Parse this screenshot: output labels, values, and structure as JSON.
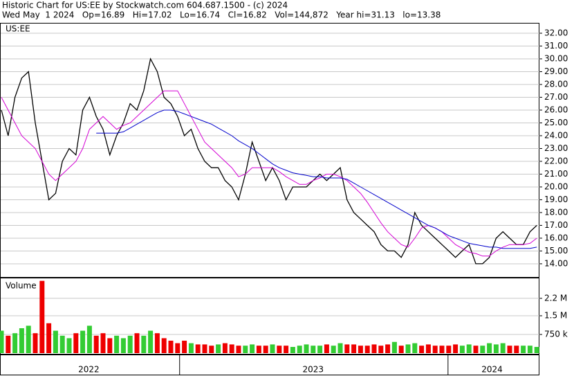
{
  "header": {
    "title": "Historic Chart for US:EE by Stockwatch.com 604.687.1500 - (c) 2024",
    "quote": "Wed May  1 2024   Op=16.89   Hi=17.02   Lo=16.74   Cl=16.82   Vol=144,872   Year hi=31.13   lo=13.38"
  },
  "chart_data": [
    {
      "type": "line",
      "title": "US:EE",
      "categories": [
        null,
        null,
        null,
        null,
        null,
        null,
        null,
        null,
        null,
        null,
        null,
        null,
        null,
        null,
        null,
        null,
        null,
        null,
        null,
        null,
        null,
        null,
        null,
        null,
        null,
        null,
        null,
        null,
        null,
        null,
        null,
        null,
        null,
        null,
        null,
        null,
        null,
        null,
        null,
        null,
        null,
        null,
        null,
        null,
        null,
        null,
        null,
        null,
        null,
        null,
        null,
        null,
        null,
        null,
        null,
        null,
        null,
        null,
        null,
        null,
        null,
        null,
        null,
        null,
        null,
        null,
        null,
        null,
        null,
        null,
        null,
        null,
        null,
        null,
        null,
        null,
        null,
        null,
        null,
        null
      ],
      "xticks": [
        {
          "value": 12.9,
          "label": "2022"
        },
        {
          "value": 46,
          "label": "2023"
        },
        {
          "value": 72.4,
          "label": "2024"
        }
      ],
      "xdividers": [
        26.3,
        65.9
      ],
      "ylim": [
        12.97,
        32.81
      ],
      "yticks": [
        {
          "value": 14,
          "label": "14.00"
        },
        {
          "value": 15,
          "label": "15.00"
        },
        {
          "value": 16,
          "label": "16.00"
        },
        {
          "value": 17,
          "label": "17.00"
        },
        {
          "value": 18,
          "label": "18.00"
        },
        {
          "value": 19,
          "label": "19.00"
        },
        {
          "value": 20,
          "label": "20.00"
        },
        {
          "value": 21,
          "label": "21.00"
        },
        {
          "value": 22,
          "label": "22.00"
        },
        {
          "value": 23,
          "label": "23.00"
        },
        {
          "value": 24,
          "label": "24.00"
        },
        {
          "value": 25,
          "label": "25.00"
        },
        {
          "value": 26,
          "label": "26.00"
        },
        {
          "value": 27,
          "label": "27.00"
        },
        {
          "value": 28,
          "label": "28.00"
        },
        {
          "value": 29,
          "label": "29.00"
        },
        {
          "value": 30,
          "label": "30.00"
        },
        {
          "value": 31,
          "label": "31.00"
        },
        {
          "value": 32,
          "label": "32.00"
        }
      ],
      "grid": true,
      "series": [
        {
          "color": "#000000",
          "values": [
            26,
            24,
            27,
            28.5,
            29,
            25,
            22,
            19,
            19.5,
            22,
            23,
            22.5,
            26,
            27,
            25.5,
            24.5,
            22.5,
            24,
            25,
            26.5,
            26,
            27.5,
            30,
            29,
            27,
            26.5,
            25.5,
            24,
            24.5,
            23,
            22,
            21.5,
            21.5,
            20.5,
            20,
            19,
            21,
            23.5,
            22,
            20.5,
            21.5,
            20.5,
            19,
            20,
            20,
            20,
            20.5,
            21,
            20.5,
            21,
            21.5,
            19,
            18,
            17.5,
            17,
            16.5,
            15.5,
            15,
            15,
            14.5,
            15.5,
            18,
            17,
            16.5,
            16,
            15.5,
            15,
            14.5,
            15,
            15.5,
            14,
            14,
            14.5,
            16,
            16.5,
            16,
            15.5,
            15.5,
            16.5,
            17
          ]
        },
        {
          "color": "#d400d4",
          "values": [
            27,
            26,
            25,
            24,
            23.5,
            23,
            22,
            21,
            20.5,
            21,
            21.5,
            22,
            23,
            24.5,
            25,
            25.5,
            25,
            24.5,
            24.8,
            25,
            25.5,
            26,
            26.5,
            27,
            27.5,
            27.5,
            27.5,
            26.5,
            25.5,
            24.5,
            23.5,
            23,
            22.5,
            22,
            21.5,
            20.8,
            21,
            21.5,
            21.5,
            21.5,
            21.5,
            21.2,
            20.8,
            20.5,
            20.2,
            20.2,
            20.5,
            20.7,
            21,
            21,
            20.8,
            20.5,
            20,
            19.5,
            18.8,
            18,
            17.2,
            16.5,
            16,
            15.5,
            15.3,
            16,
            16.8,
            17,
            16.8,
            16.5,
            16,
            15.5,
            15.2,
            14.9,
            14.8,
            14.6,
            14.6,
            15,
            15.3,
            15.5,
            15.5,
            15.5,
            15.6,
            16
          ]
        },
        {
          "color": "#0000cc",
          "values": [
            null,
            null,
            null,
            null,
            null,
            null,
            null,
            null,
            null,
            null,
            null,
            null,
            null,
            null,
            24.2,
            24.2,
            24.2,
            24.2,
            24.3,
            24.6,
            24.9,
            25.2,
            25.5,
            25.8,
            26,
            26,
            25.9,
            25.7,
            25.5,
            25.3,
            25.1,
            24.9,
            24.6,
            24.3,
            24,
            23.6,
            23.3,
            23,
            22.6,
            22.2,
            21.8,
            21.5,
            21.3,
            21.1,
            21,
            20.9,
            20.8,
            20.8,
            20.7,
            20.7,
            20.7,
            20.6,
            20.3,
            20,
            19.7,
            19.4,
            19.1,
            18.8,
            18.5,
            18.2,
            17.9,
            17.6,
            17.3,
            17,
            16.8,
            16.5,
            16.2,
            16,
            15.8,
            15.6,
            15.5,
            15.4,
            15.3,
            15.3,
            15.2,
            15.2,
            15.2,
            15.2,
            15.2,
            15.3
          ]
        }
      ]
    },
    {
      "type": "bar",
      "title": "Volume",
      "up_color": "#33cc33",
      "down_color": "#ee0000",
      "ylim": [
        0,
        3000000
      ],
      "yticks": [
        {
          "value": 750000,
          "label": "750 k"
        },
        {
          "value": 1500000,
          "label": "1.5 M"
        },
        {
          "value": 2200000,
          "label": "2.2 M"
        }
      ],
      "values": [
        900000,
        700000,
        800000,
        1000000,
        1100000,
        800000,
        2900000,
        1200000,
        900000,
        700000,
        600000,
        800000,
        900000,
        1100000,
        700000,
        800000,
        600000,
        700000,
        600000,
        700000,
        800000,
        700000,
        900000,
        800000,
        600000,
        500000,
        400000,
        500000,
        400000,
        350000,
        350000,
        300000,
        350000,
        400000,
        350000,
        300000,
        300000,
        350000,
        300000,
        300000,
        350000,
        300000,
        300000,
        250000,
        300000,
        350000,
        300000,
        300000,
        350000,
        300000,
        400000,
        350000,
        350000,
        300000,
        300000,
        350000,
        300000,
        350000,
        450000,
        300000,
        350000,
        400000,
        300000,
        350000,
        300000,
        300000,
        300000,
        350000,
        300000,
        350000,
        300000,
        300000,
        400000,
        350000,
        400000,
        300000,
        300000,
        300000,
        300000,
        250000
      ]
    }
  ]
}
